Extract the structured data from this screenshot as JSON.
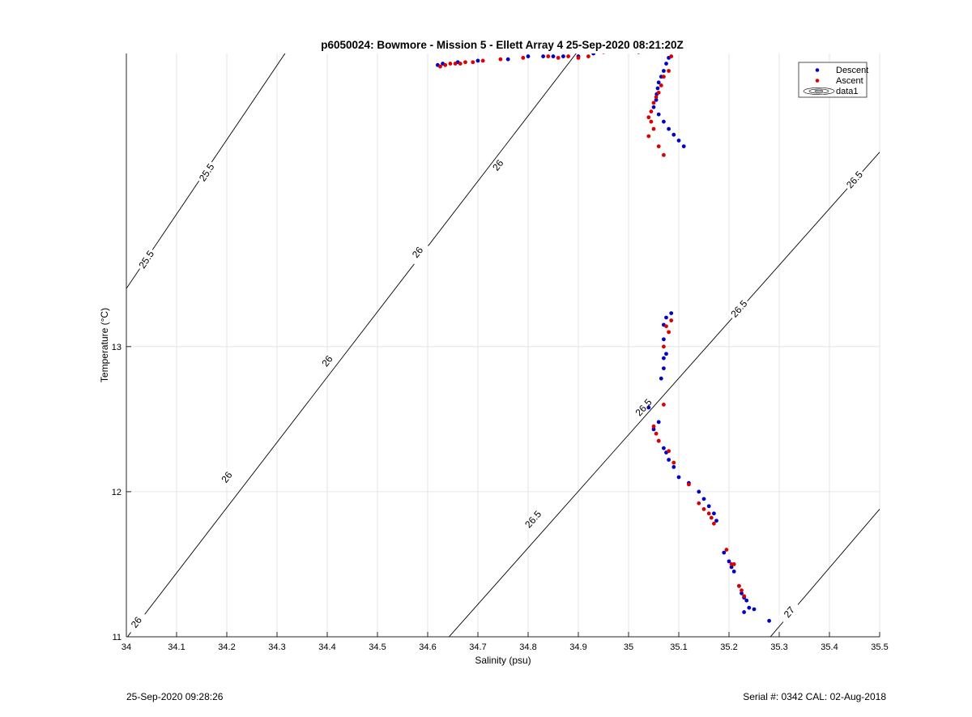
{
  "chart_data": {
    "type": "scatter",
    "title": "p6050024: Bowmore - Mission 5 - Ellett Array 4 25-Sep-2020 08:21:20Z",
    "xlabel": "Salinity (psu)",
    "ylabel": "Temperature (°C)",
    "xlim": [
      34,
      35.5
    ],
    "ylim": [
      11,
      15.02
    ],
    "x_ticks": [
      34,
      34.1,
      34.2,
      34.3,
      34.4,
      34.5,
      34.6,
      34.7,
      34.8,
      34.9,
      35,
      35.1,
      35.2,
      35.3,
      35.4,
      35.5
    ],
    "x_tick_labels": [
      "34",
      "34.1",
      "34.2",
      "34.3",
      "34.4",
      "34.5",
      "34.6",
      "34.7",
      "34.8",
      "34.9",
      "35",
      "35.1",
      "35.2",
      "35.3",
      "35.4",
      "35.5"
    ],
    "y_ticks": [
      11,
      12,
      13
    ],
    "y_tick_labels": [
      "11",
      "12",
      "13"
    ],
    "grid": true,
    "legend": {
      "position": "top-right",
      "entries": [
        "Descent",
        "Ascent",
        "data1"
      ]
    },
    "series": [
      {
        "name": "Descent",
        "color": "#0000cc",
        "x": [
          34.62,
          34.63,
          34.66,
          34.7,
          34.76,
          34.8,
          34.83,
          34.85,
          34.87,
          34.9,
          34.93,
          34.97,
          34.99,
          35.02,
          35.05,
          35.07,
          35.09,
          35.08,
          35.075,
          35.07,
          35.065,
          35.06,
          35.058,
          35.056,
          35.055,
          35.05,
          35.06,
          35.07,
          35.08,
          35.09,
          35.1,
          35.11,
          35.085,
          35.075,
          35.07,
          35.07,
          35.075,
          35.07,
          35.065,
          35.07,
          35.04,
          35.05,
          35.06,
          35.06,
          35.07,
          35.075,
          35.08,
          35.09,
          35.1,
          35.12,
          35.14,
          35.15,
          35.16,
          35.17,
          35.175,
          35.19,
          35.2,
          35.205,
          35.21,
          35.22,
          35.225,
          35.23,
          35.235,
          35.23,
          35.24,
          35.25,
          35.28
        ],
        "y": [
          14.94,
          14.95,
          14.96,
          14.97,
          14.98,
          15.0,
          15.0,
          15.0,
          15.0,
          15.0,
          15.02,
          15.05,
          15.05,
          15.03,
          15.04,
          15.05,
          15.04,
          14.99,
          14.95,
          14.9,
          14.86,
          14.82,
          14.78,
          14.74,
          14.7,
          14.65,
          14.6,
          14.55,
          14.5,
          14.46,
          14.42,
          14.38,
          13.23,
          13.2,
          13.15,
          13.05,
          12.95,
          12.85,
          12.78,
          12.92,
          12.58,
          12.43,
          12.48,
          12.35,
          12.3,
          12.27,
          12.22,
          12.17,
          12.1,
          12.06,
          12.0,
          11.95,
          11.9,
          11.85,
          11.8,
          11.58,
          11.52,
          11.48,
          11.45,
          11.35,
          11.3,
          11.27,
          11.25,
          11.17,
          11.2,
          11.19,
          11.11
        ]
      },
      {
        "name": "Ascent",
        "color": "#dd0000",
        "x": [
          34.625,
          34.635,
          34.645,
          34.655,
          34.665,
          34.675,
          34.69,
          34.71,
          34.745,
          34.79,
          34.84,
          34.86,
          34.88,
          34.9,
          34.92,
          34.95,
          34.96,
          35.0,
          35.03,
          35.06,
          35.075,
          35.09,
          35.085,
          35.08,
          35.07,
          35.065,
          35.06,
          35.055,
          35.05,
          35.045,
          35.04,
          35.045,
          35.05,
          35.04,
          35.06,
          35.07,
          35.085,
          35.075,
          35.08,
          35.07,
          35.05,
          35.055,
          35.06,
          35.07,
          35.08,
          35.09,
          35.12,
          35.14,
          35.15,
          35.16,
          35.165,
          35.17,
          35.195,
          35.205,
          35.21,
          35.22,
          35.225,
          35.23
        ],
        "y": [
          14.93,
          14.94,
          14.95,
          14.95,
          14.95,
          14.96,
          14.96,
          14.97,
          14.98,
          14.99,
          15.0,
          14.99,
          15.0,
          14.99,
          15.0,
          15.03,
          15.04,
          15.06,
          15.04,
          15.05,
          15.05,
          15.05,
          15.0,
          14.9,
          14.86,
          14.8,
          14.75,
          14.72,
          14.68,
          14.62,
          14.58,
          14.55,
          14.5,
          14.45,
          14.38,
          14.32,
          13.18,
          13.14,
          13.1,
          13.0,
          12.45,
          12.4,
          12.35,
          12.6,
          12.28,
          12.2,
          12.05,
          11.92,
          11.88,
          11.85,
          11.82,
          11.78,
          11.6,
          11.5,
          11.5,
          11.35,
          11.32,
          11.28
        ]
      }
    ],
    "contour_labels": [
      "25.5",
      "26",
      "26.5",
      "27"
    ]
  },
  "footer": {
    "left": "25-Sep-2020 09:28:26",
    "right": "Serial #: 0342  CAL: 02-Aug-2018"
  }
}
